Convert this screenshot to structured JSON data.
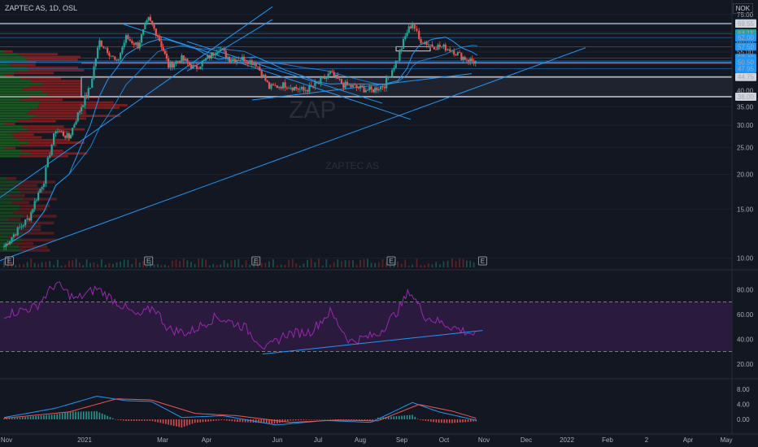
{
  "header": {
    "symbol_line": "ZAPTEC AS, 1D, OSL",
    "currency": "NOK"
  },
  "watermark": {
    "ticker": "ZAP",
    "name": "ZAPTEC AS"
  },
  "colors": {
    "bg": "#131722",
    "up": "#26a69a",
    "down": "#ef5350",
    "line": "#2196f3",
    "rsi": "#9c27b0",
    "rsi_band": "#2a1a3d",
    "grid": "#1e222d",
    "text": "#a8abb4"
  },
  "chart_data": [
    {
      "type": "candlestick",
      "title": "",
      "x_labels": [
        "Nov",
        "2021",
        "Mar",
        "Apr",
        "Jun",
        "Jul",
        "Aug",
        "Sep",
        "Oct",
        "Nov",
        "Dec",
        "2022",
        "Feb",
        "2",
        "Apr",
        "May"
      ],
      "price_scale": "log",
      "price_ticks": [
        "75.00",
        "70.00",
        "65.00",
        "60.00",
        "55.00",
        "50.00",
        "45.00",
        "40.00",
        "35.00",
        "30.00",
        "25.00",
        "20.00",
        "15.00",
        "10.00"
      ],
      "price_levels": [
        {
          "label": "69.85",
          "value": 69.85,
          "style": "blue"
        },
        {
          "label": "69.55",
          "value": 69.55,
          "style": "white"
        },
        {
          "label": "64.15",
          "value": 64.15,
          "style": "green"
        },
        {
          "label": "62.00",
          "value": 62.0,
          "style": "blue"
        },
        {
          "label": "57.50",
          "value": 57.5,
          "style": "blue"
        },
        {
          "label": "52.40",
          "value": 52.4,
          "style": "blue"
        },
        {
          "label": "51.10",
          "value": 51.1,
          "style": "blue"
        },
        {
          "label": "50.70",
          "value": 50.7,
          "style": "blue"
        },
        {
          "label": "50.50",
          "value": 50.5,
          "style": "blue"
        },
        {
          "label": "47.95",
          "value": 47.95,
          "style": "blue"
        },
        {
          "label": "44.75",
          "value": 44.75,
          "style": "white"
        },
        {
          "label": "38.00",
          "value": 38.0,
          "style": "white"
        }
      ],
      "close_path": [
        {
          "d": "2020-11-01",
          "c": 11
        },
        {
          "d": "2020-11-20",
          "c": 14
        },
        {
          "d": "2020-12-01",
          "c": 19
        },
        {
          "d": "2020-12-10",
          "c": 29
        },
        {
          "d": "2020-12-20",
          "c": 27
        },
        {
          "d": "2020-12-28",
          "c": 34
        },
        {
          "d": "2021-01-05",
          "c": 41
        },
        {
          "d": "2021-01-12",
          "c": 60
        },
        {
          "d": "2021-01-18",
          "c": 56
        },
        {
          "d": "2021-01-25",
          "c": 50
        },
        {
          "d": "2021-02-01",
          "c": 62
        },
        {
          "d": "2021-02-10",
          "c": 58
        },
        {
          "d": "2021-02-18",
          "c": 72
        },
        {
          "d": "2021-02-25",
          "c": 63
        },
        {
          "d": "2021-03-05",
          "c": 49
        },
        {
          "d": "2021-03-15",
          "c": 52
        },
        {
          "d": "2021-03-25",
          "c": 48
        },
        {
          "d": "2021-04-05",
          "c": 53
        },
        {
          "d": "2021-04-12",
          "c": 57
        },
        {
          "d": "2021-04-20",
          "c": 52
        },
        {
          "d": "2021-05-01",
          "c": 52
        },
        {
          "d": "2021-05-10",
          "c": 50
        },
        {
          "d": "2021-05-20",
          "c": 41
        },
        {
          "d": "2021-06-01",
          "c": 42
        },
        {
          "d": "2021-06-15",
          "c": 40
        },
        {
          "d": "2021-06-25",
          "c": 42
        },
        {
          "d": "2021-07-05",
          "c": 46
        },
        {
          "d": "2021-07-15",
          "c": 42
        },
        {
          "d": "2021-07-25",
          "c": 41
        },
        {
          "d": "2021-08-05",
          "c": 40
        },
        {
          "d": "2021-08-15",
          "c": 42
        },
        {
          "d": "2021-08-25",
          "c": 52
        },
        {
          "d": "2021-09-01",
          "c": 65
        },
        {
          "d": "2021-09-05",
          "c": 70
        },
        {
          "d": "2021-09-10",
          "c": 61
        },
        {
          "d": "2021-09-20",
          "c": 58
        },
        {
          "d": "2021-09-30",
          "c": 57
        },
        {
          "d": "2021-10-05",
          "c": 56
        },
        {
          "d": "2021-10-12",
          "c": 53
        },
        {
          "d": "2021-10-20",
          "c": 51
        },
        {
          "d": "2021-10-24",
          "c": 50.7
        }
      ]
    },
    {
      "type": "line",
      "name": "RSI",
      "y_ticks": [
        "80.00",
        "60.00",
        "40.00",
        "20.00"
      ],
      "levels": [
        70,
        30
      ],
      "series": [
        {
          "d": "2020-11-01",
          "v": 60
        },
        {
          "d": "2020-11-25",
          "v": 66
        },
        {
          "d": "2020-12-10",
          "v": 85
        },
        {
          "d": "2020-12-25",
          "v": 72
        },
        {
          "d": "2021-01-10",
          "v": 81
        },
        {
          "d": "2021-01-25",
          "v": 70
        },
        {
          "d": "2021-02-10",
          "v": 58
        },
        {
          "d": "2021-02-22",
          "v": 66
        },
        {
          "d": "2021-03-05",
          "v": 48
        },
        {
          "d": "2021-03-20",
          "v": 45
        },
        {
          "d": "2021-04-10",
          "v": 58
        },
        {
          "d": "2021-05-01",
          "v": 50
        },
        {
          "d": "2021-05-18",
          "v": 32
        },
        {
          "d": "2021-06-01",
          "v": 44
        },
        {
          "d": "2021-06-20",
          "v": 46
        },
        {
          "d": "2021-07-05",
          "v": 62
        },
        {
          "d": "2021-07-20",
          "v": 38
        },
        {
          "d": "2021-08-10",
          "v": 44
        },
        {
          "d": "2021-08-25",
          "v": 63
        },
        {
          "d": "2021-09-03",
          "v": 79
        },
        {
          "d": "2021-09-15",
          "v": 58
        },
        {
          "d": "2021-09-30",
          "v": 52
        },
        {
          "d": "2021-10-10",
          "v": 48
        },
        {
          "d": "2021-10-24",
          "v": 43
        }
      ]
    },
    {
      "type": "histogram",
      "name": "MACD",
      "y_ticks": [
        "8.00",
        "4.00",
        "0.00"
      ],
      "macd": [
        {
          "d": "2020-11-01",
          "v": 0.5
        },
        {
          "d": "2020-12-10",
          "v": 3.0
        },
        {
          "d": "2021-01-10",
          "v": 6.2
        },
        {
          "d": "2021-02-01",
          "v": 5.0
        },
        {
          "d": "2021-02-20",
          "v": 4.8
        },
        {
          "d": "2021-03-15",
          "v": 0.5
        },
        {
          "d": "2021-04-15",
          "v": 1.0
        },
        {
          "d": "2021-05-25",
          "v": -1.5
        },
        {
          "d": "2021-07-01",
          "v": -0.3
        },
        {
          "d": "2021-08-05",
          "v": -0.8
        },
        {
          "d": "2021-09-05",
          "v": 4.5
        },
        {
          "d": "2021-09-25",
          "v": 2.0
        },
        {
          "d": "2021-10-24",
          "v": -0.3
        }
      ],
      "signal": [
        {
          "d": "2020-11-01",
          "v": 0.3
        },
        {
          "d": "2020-12-20",
          "v": 2.0
        },
        {
          "d": "2021-01-25",
          "v": 5.5
        },
        {
          "d": "2021-02-20",
          "v": 5.2
        },
        {
          "d": "2021-03-25",
          "v": 1.6
        },
        {
          "d": "2021-04-25",
          "v": 1.0
        },
        {
          "d": "2021-06-05",
          "v": -0.8
        },
        {
          "d": "2021-07-10",
          "v": -0.2
        },
        {
          "d": "2021-08-10",
          "v": -0.4
        },
        {
          "d": "2021-09-10",
          "v": 4.0
        },
        {
          "d": "2021-10-05",
          "v": 2.2
        },
        {
          "d": "2021-10-24",
          "v": 0.2
        }
      ]
    }
  ],
  "earnings_markers": [
    {
      "d": "2020-11-05",
      "label": "E"
    },
    {
      "d": "2021-02-18",
      "label": "E"
    },
    {
      "d": "2021-05-10",
      "label": "E"
    },
    {
      "d": "2021-08-20",
      "label": "E"
    },
    {
      "d": "2021-10-28",
      "label": "E"
    }
  ]
}
